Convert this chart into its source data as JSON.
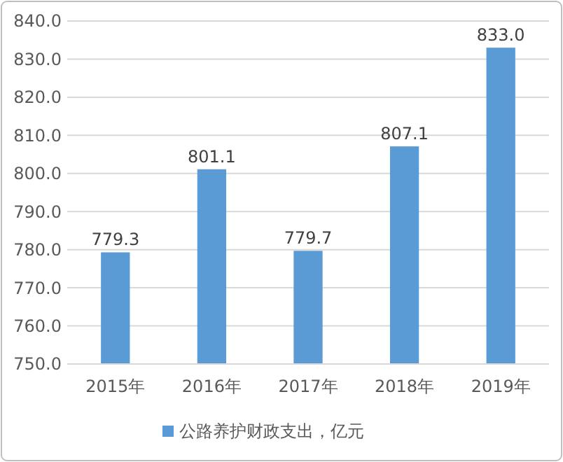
{
  "chart_data": {
    "type": "bar",
    "categories": [
      "2015年",
      "2016年",
      "2017年",
      "2018年",
      "2019年"
    ],
    "series": [
      {
        "name": "公路养护财政支出，亿元",
        "color": "#5b9bd5",
        "values": [
          779.3,
          801.1,
          779.7,
          807.1,
          833.0
        ]
      }
    ],
    "value_labels": [
      "779.3",
      "801.1",
      "779.7",
      "807.1",
      "833.0"
    ],
    "ylim": [
      750,
      840
    ],
    "yticks": [
      {
        "value": 750,
        "label": "750.0"
      },
      {
        "value": 760,
        "label": "760.0"
      },
      {
        "value": 770,
        "label": "770.0"
      },
      {
        "value": 780,
        "label": "780.0"
      },
      {
        "value": 790,
        "label": "790.0"
      },
      {
        "value": 800,
        "label": "800.0"
      },
      {
        "value": 810,
        "label": "810.0"
      },
      {
        "value": 820,
        "label": "820.0"
      },
      {
        "value": 830,
        "label": "830.0"
      },
      {
        "value": 840,
        "label": "840.0"
      }
    ],
    "grid": "y",
    "legend": "bottom"
  }
}
